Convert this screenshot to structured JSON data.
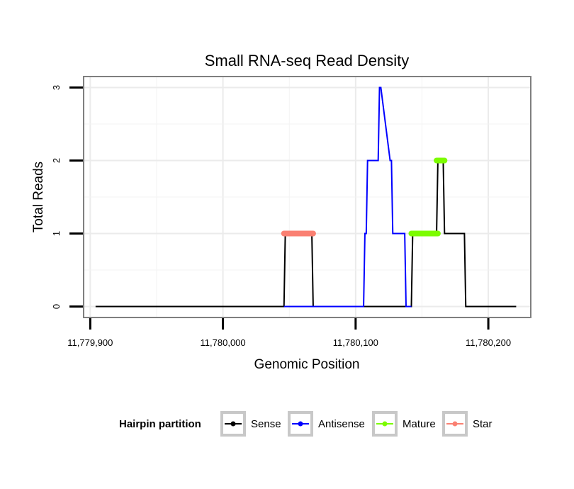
{
  "chart_data": {
    "type": "line",
    "title": "Small RNA-seq Read Density",
    "xlabel": "Genomic Position",
    "ylabel": "Total Reads",
    "xlim": [
      11779895,
      11780232
    ],
    "ylim": [
      -0.15,
      3.15
    ],
    "xticks": [
      11779900,
      11780000,
      11780100,
      11780200
    ],
    "xtick_labels": [
      "11,779,900",
      "11,780,000",
      "11,780,100",
      "11,780,200"
    ],
    "yticks": [
      0,
      1,
      2,
      3
    ],
    "ytick_labels": [
      "0",
      "1",
      "2",
      "3"
    ],
    "grid": true,
    "legend": {
      "title": "Hairpin partition",
      "position": "bottom",
      "entries": [
        "Sense",
        "Antisense",
        "Mature",
        "Star"
      ]
    },
    "series": [
      {
        "name": "Sense",
        "color": "#000000",
        "style": "line",
        "x": [
          11779904,
          11780046,
          11780047,
          11780067,
          11780068,
          11780142,
          11780143,
          11780161,
          11780162,
          11780166,
          11780167,
          11780182,
          11780183,
          11780221
        ],
        "y": [
          0,
          0,
          1,
          1,
          0,
          0,
          1,
          1,
          2,
          2,
          1,
          1,
          0,
          0
        ]
      },
      {
        "name": "Antisense",
        "color": "#0000ff",
        "style": "line",
        "x": [
          11780046,
          11780106,
          11780107,
          11780108,
          11780109,
          11780117,
          11780118,
          11780119,
          11780126,
          11780127,
          11780128,
          11780137,
          11780138,
          11780142
        ],
        "y": [
          0,
          0,
          1,
          1,
          2,
          2,
          3,
          3,
          2,
          2,
          1,
          1,
          0,
          0
        ]
      },
      {
        "name": "Mature",
        "color": "#7cfc00",
        "style": "thick-segment",
        "x": [
          11780142,
          11780162,
          11780161,
          11780167
        ],
        "y": [
          1,
          1,
          2,
          2
        ]
      },
      {
        "name": "Star",
        "color": "#fa8072",
        "style": "thick-segment",
        "x": [
          11780046,
          11780068
        ],
        "y": [
          1,
          1
        ]
      }
    ]
  }
}
